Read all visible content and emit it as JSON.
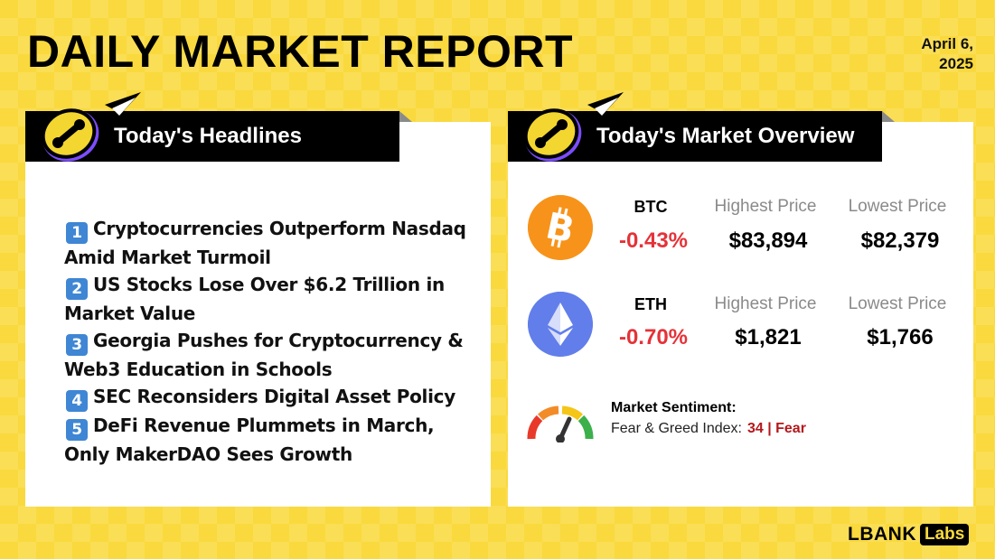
{
  "header": {
    "title": "DAILY MARKET REPORT",
    "date_line1": "April 6,",
    "date_line2": "2025"
  },
  "headlines_panel": {
    "title": "Today's Headlines",
    "items": [
      {
        "number": "1",
        "text": "Cryptocurrencies Outperform Nasdaq Amid Market Turmoil"
      },
      {
        "number": "2",
        "text": "US Stocks Lose Over $6.2 Trillion in Market Value"
      },
      {
        "number": "3",
        "text": "Georgia Pushes for Cryptocurrency & Web3 Education in Schools"
      },
      {
        "number": "4",
        "text": "SEC Reconsiders Digital Asset Policy"
      },
      {
        "number": "5",
        "text": "DeFi Revenue Plummets in March, Only MakerDAO Sees Growth"
      }
    ]
  },
  "market_panel": {
    "title": "Today's Market Overview",
    "highest_label": "Highest Price",
    "lowest_label": "Lowest Price",
    "coins": [
      {
        "symbol": "BTC",
        "change": "-0.43%",
        "highest": "$83,894",
        "lowest": "$82,379",
        "icon": "bitcoin-icon"
      },
      {
        "symbol": "ETH",
        "change": "-0.70%",
        "highest": "$1,821",
        "lowest": "$1,766",
        "icon": "ethereum-icon"
      }
    ],
    "sentiment": {
      "label": "Market Sentiment:",
      "index_label": "Fear & Greed Index:",
      "value": "34 | Fear",
      "icon": "gauge-icon"
    }
  },
  "brand": {
    "name": "LBANK",
    "suffix": "Labs"
  },
  "colors": {
    "background": "#f9d93d",
    "negative": "#e53238",
    "fear": "#b5171c",
    "btc": "#f7931a",
    "eth": "#627eea"
  }
}
